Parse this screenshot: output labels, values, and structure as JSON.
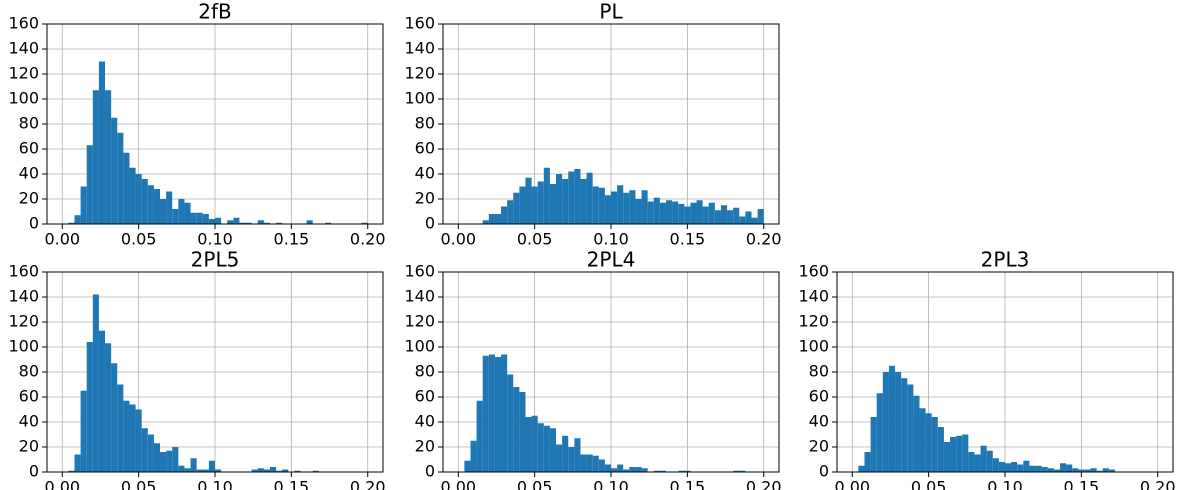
{
  "chart_data": [
    {
      "type": "histogram",
      "title": "2fB",
      "color": "#1f77b4",
      "grid": true,
      "bins": [
        0,
        0.004,
        0.008,
        0.012,
        0.016,
        0.02,
        0.024,
        0.028,
        0.032,
        0.036,
        0.04,
        0.044,
        0.048,
        0.052,
        0.056,
        0.06,
        0.064,
        0.068,
        0.072,
        0.076,
        0.08,
        0.084,
        0.088,
        0.092,
        0.096,
        0.1,
        0.104,
        0.108,
        0.112,
        0.116,
        0.12,
        0.124,
        0.128,
        0.132,
        0.136,
        0.14,
        0.144,
        0.148,
        0.152,
        0.156,
        0.16,
        0.164,
        0.168,
        0.172,
        0.176,
        0.18,
        0.184,
        0.188,
        0.192,
        0.196,
        0.2
      ],
      "counts": [
        0,
        1,
        7,
        30,
        63,
        107,
        130,
        107,
        85,
        73,
        57,
        45,
        40,
        36,
        31,
        28,
        20,
        26,
        12,
        20,
        17,
        9,
        9,
        8,
        4,
        5,
        0,
        3,
        5,
        1,
        1,
        0,
        3,
        1,
        0,
        1,
        0,
        0,
        0,
        0,
        3,
        0,
        0,
        1,
        0,
        0,
        0,
        0,
        0,
        1
      ],
      "xlim": [
        -0.01,
        0.21
      ],
      "ylim": [
        0,
        160
      ],
      "xticks": [
        {
          "value": 0,
          "label": "0.00"
        },
        {
          "value": 0.05,
          "label": "0.05"
        },
        {
          "value": 0.1,
          "label": "0.10"
        },
        {
          "value": 0.15,
          "label": "0.15"
        },
        {
          "value": 0.2,
          "label": "0.20"
        }
      ],
      "yticks": [
        0,
        20,
        40,
        60,
        80,
        100,
        120,
        140,
        160
      ]
    },
    {
      "type": "histogram",
      "title": "PL",
      "color": "#1f77b4",
      "grid": true,
      "bins": [
        0,
        0.004,
        0.008,
        0.012,
        0.016,
        0.02,
        0.024,
        0.028,
        0.032,
        0.036,
        0.04,
        0.044,
        0.048,
        0.052,
        0.056,
        0.06,
        0.064,
        0.068,
        0.072,
        0.076,
        0.08,
        0.084,
        0.088,
        0.092,
        0.096,
        0.1,
        0.104,
        0.108,
        0.112,
        0.116,
        0.12,
        0.124,
        0.128,
        0.132,
        0.136,
        0.14,
        0.144,
        0.148,
        0.152,
        0.156,
        0.16,
        0.164,
        0.168,
        0.172,
        0.176,
        0.18,
        0.184,
        0.188,
        0.192,
        0.196,
        0.2
      ],
      "counts": [
        0,
        0,
        0,
        0,
        3,
        8,
        8,
        14,
        19,
        25,
        30,
        37,
        30,
        34,
        45,
        32,
        40,
        36,
        42,
        44,
        36,
        41,
        30,
        29,
        23,
        26,
        31,
        25,
        27,
        20,
        27,
        18,
        21,
        17,
        19,
        18,
        16,
        14,
        17,
        19,
        14,
        17,
        11,
        15,
        11,
        13,
        6,
        10,
        5,
        12
      ],
      "xlim": [
        -0.01,
        0.21
      ],
      "ylim": [
        0,
        160
      ],
      "xticks": [
        {
          "value": 0,
          "label": "0.00"
        },
        {
          "value": 0.05,
          "label": "0.05"
        },
        {
          "value": 0.1,
          "label": "0.10"
        },
        {
          "value": 0.15,
          "label": "0.15"
        },
        {
          "value": 0.2,
          "label": "0.20"
        }
      ],
      "yticks": [
        0,
        20,
        40,
        60,
        80,
        100,
        120,
        140,
        160
      ]
    },
    {
      "type": "histogram",
      "title": "2PL5",
      "color": "#1f77b4",
      "grid": true,
      "bins": [
        0,
        0.004,
        0.008,
        0.012,
        0.016,
        0.02,
        0.024,
        0.028,
        0.032,
        0.036,
        0.04,
        0.044,
        0.048,
        0.052,
        0.056,
        0.06,
        0.064,
        0.068,
        0.072,
        0.076,
        0.08,
        0.084,
        0.088,
        0.092,
        0.096,
        0.1,
        0.104,
        0.108,
        0.112,
        0.116,
        0.12,
        0.124,
        0.128,
        0.132,
        0.136,
        0.14,
        0.144,
        0.148,
        0.152,
        0.156,
        0.16,
        0.164,
        0.168,
        0.172,
        0.176,
        0.18,
        0.184,
        0.188,
        0.192,
        0.196,
        0.2
      ],
      "counts": [
        0,
        1,
        14,
        65,
        104,
        142,
        113,
        103,
        87,
        70,
        57,
        54,
        50,
        35,
        30,
        23,
        16,
        17,
        20,
        5,
        3,
        11,
        2,
        2,
        9,
        2,
        0,
        0,
        0,
        0,
        0,
        2,
        3,
        2,
        4,
        1,
        2,
        0,
        1,
        0,
        0,
        1,
        0,
        0,
        0,
        0,
        0,
        0,
        0,
        0
      ],
      "xlim": [
        -0.01,
        0.21
      ],
      "ylim": [
        0,
        160
      ],
      "xticks": [
        {
          "value": 0,
          "label": "0.00"
        },
        {
          "value": 0.05,
          "label": "0.05"
        },
        {
          "value": 0.1,
          "label": "0.10"
        },
        {
          "value": 0.15,
          "label": "0.15"
        },
        {
          "value": 0.2,
          "label": "0.20"
        }
      ],
      "yticks": [
        0,
        20,
        40,
        60,
        80,
        100,
        120,
        140,
        160
      ]
    },
    {
      "type": "histogram",
      "title": "2PL4",
      "color": "#1f77b4",
      "grid": true,
      "bins": [
        0,
        0.004,
        0.008,
        0.012,
        0.016,
        0.02,
        0.024,
        0.028,
        0.032,
        0.036,
        0.04,
        0.044,
        0.048,
        0.052,
        0.056,
        0.06,
        0.064,
        0.068,
        0.072,
        0.076,
        0.08,
        0.084,
        0.088,
        0.092,
        0.096,
        0.1,
        0.104,
        0.108,
        0.112,
        0.116,
        0.12,
        0.124,
        0.128,
        0.132,
        0.136,
        0.14,
        0.144,
        0.148,
        0.152,
        0.156,
        0.16,
        0.164,
        0.168,
        0.172,
        0.176,
        0.18,
        0.184,
        0.188,
        0.192,
        0.196,
        0.2
      ],
      "counts": [
        0,
        9,
        25,
        57,
        93,
        94,
        92,
        94,
        78,
        68,
        64,
        44,
        45,
        39,
        37,
        35,
        22,
        29,
        20,
        27,
        14,
        14,
        13,
        10,
        6,
        3,
        6,
        2,
        4,
        4,
        3,
        0,
        1,
        1,
        0,
        0,
        1,
        1,
        0,
        0,
        0,
        0,
        0,
        0,
        0,
        1,
        1,
        0,
        0,
        0
      ],
      "xlim": [
        -0.01,
        0.21
      ],
      "ylim": [
        0,
        160
      ],
      "xticks": [
        {
          "value": 0,
          "label": "0.00"
        },
        {
          "value": 0.05,
          "label": "0.05"
        },
        {
          "value": 0.1,
          "label": "0.10"
        },
        {
          "value": 0.15,
          "label": "0.15"
        },
        {
          "value": 0.2,
          "label": "0.20"
        }
      ],
      "yticks": [
        0,
        20,
        40,
        60,
        80,
        100,
        120,
        140,
        160
      ]
    },
    {
      "type": "histogram",
      "title": "2PL3",
      "color": "#1f77b4",
      "grid": true,
      "bins": [
        0,
        0.004,
        0.008,
        0.012,
        0.016,
        0.02,
        0.024,
        0.028,
        0.032,
        0.036,
        0.04,
        0.044,
        0.048,
        0.052,
        0.056,
        0.06,
        0.064,
        0.068,
        0.072,
        0.076,
        0.08,
        0.084,
        0.088,
        0.092,
        0.096,
        0.1,
        0.104,
        0.108,
        0.112,
        0.116,
        0.12,
        0.124,
        0.128,
        0.132,
        0.136,
        0.14,
        0.144,
        0.148,
        0.152,
        0.156,
        0.16,
        0.164,
        0.168,
        0.172,
        0.176,
        0.18,
        0.184,
        0.188,
        0.192,
        0.196,
        0.2
      ],
      "counts": [
        0,
        5,
        16,
        44,
        63,
        80,
        85,
        80,
        75,
        70,
        61,
        51,
        47,
        44,
        36,
        24,
        28,
        29,
        30,
        16,
        14,
        21,
        17,
        11,
        8,
        7,
        8,
        6,
        9,
        5,
        5,
        4,
        3,
        2,
        7,
        6,
        3,
        2,
        2,
        3,
        1,
        3,
        2,
        0,
        0,
        0,
        0,
        0,
        0,
        0
      ],
      "xlim": [
        -0.01,
        0.21
      ],
      "ylim": [
        0,
        160
      ],
      "xticks": [
        {
          "value": 0,
          "label": "0.00"
        },
        {
          "value": 0.05,
          "label": "0.05"
        },
        {
          "value": 0.1,
          "label": "0.10"
        },
        {
          "value": 0.15,
          "label": "0.15"
        },
        {
          "value": 0.2,
          "label": "0.20"
        }
      ],
      "yticks": [
        0,
        20,
        40,
        60,
        80,
        100,
        120,
        140,
        160
      ]
    }
  ]
}
